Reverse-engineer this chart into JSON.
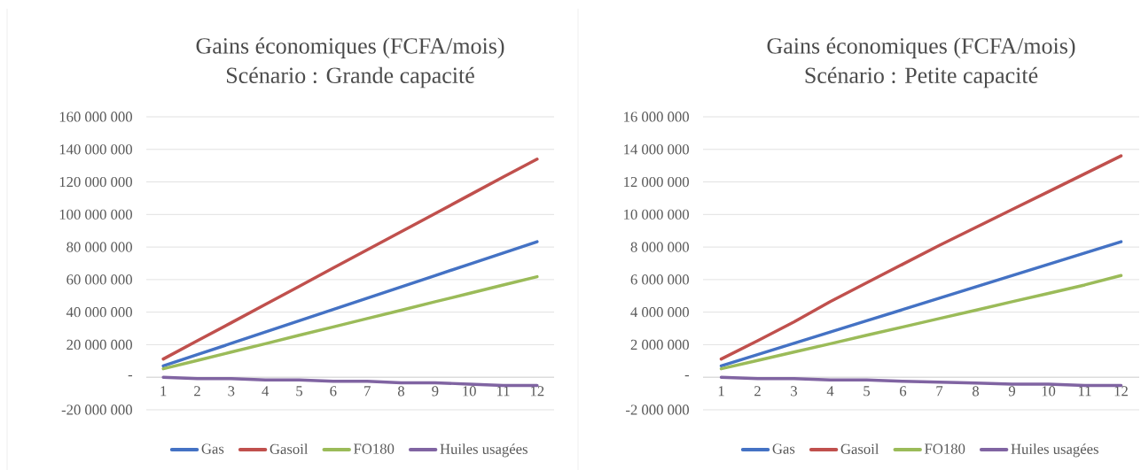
{
  "chart_data": [
    {
      "type": "line",
      "title": "Gains économiques (FCFA/mois)",
      "subtitle": "Scénario : Grande capacité",
      "categories": [
        "1",
        "2",
        "3",
        "4",
        "5",
        "6",
        "7",
        "8",
        "9",
        "10",
        "11",
        "12"
      ],
      "series": [
        {
          "name": "Gas",
          "color": "#4472c4",
          "values": [
            7000000,
            13900000,
            20800000,
            27800000,
            34700000,
            41600000,
            48600000,
            55500000,
            62500000,
            69400000,
            76300000,
            83300000
          ]
        },
        {
          "name": "Gasoil",
          "color": "#c0504d",
          "values": [
            11200000,
            22400000,
            33500000,
            44700000,
            55900000,
            67100000,
            78300000,
            89400000,
            100600000,
            111800000,
            123000000,
            134000000
          ]
        },
        {
          "name": "FO180",
          "color": "#9bbb59",
          "values": [
            5200000,
            10300000,
            15500000,
            20600000,
            25800000,
            30900000,
            36100000,
            41200000,
            46400000,
            51500000,
            56700000,
            61800000
          ]
        },
        {
          "name": "Huiles usagées",
          "color": "#8064a2",
          "values": [
            0,
            -800000,
            -800000,
            -1700000,
            -1700000,
            -2500000,
            -2500000,
            -3400000,
            -3400000,
            -4200000,
            -5000000,
            -5000000
          ]
        }
      ],
      "ylim": [
        -20000000,
        160000000
      ],
      "yticks": [
        {
          "value": -20000000,
          "label": "-20 000 000"
        },
        {
          "value": 0,
          "label": "-"
        },
        {
          "value": 20000000,
          "label": "20 000 000"
        },
        {
          "value": 40000000,
          "label": "40 000 000"
        },
        {
          "value": 60000000,
          "label": "60 000 000"
        },
        {
          "value": 80000000,
          "label": "80 000 000"
        },
        {
          "value": 100000000,
          "label": "100 000 000"
        },
        {
          "value": 120000000,
          "label": "120 000 000"
        },
        {
          "value": 140000000,
          "label": "140 000 000"
        },
        {
          "value": 160000000,
          "label": "160 000 000"
        }
      ],
      "grid": "y",
      "legend": "bottom",
      "marker": "none",
      "line_style": "solid"
    },
    {
      "type": "line",
      "title": "Gains économiques (FCFA/mois)",
      "subtitle": "Scénario : Petite capacité",
      "categories": [
        "1",
        "2",
        "3",
        "4",
        "5",
        "6",
        "7",
        "8",
        "9",
        "10",
        "11",
        "12"
      ],
      "series": [
        {
          "name": "Gas",
          "color": "#4472c4",
          "values": [
            700000,
            1390000,
            2080000,
            2780000,
            3470000,
            4160000,
            4860000,
            5550000,
            6250000,
            6940000,
            7630000,
            8330000
          ]
        },
        {
          "name": "Gasoil",
          "color": "#c0504d",
          "values": [
            1120000,
            2240000,
            3400000,
            4650000,
            5800000,
            6950000,
            8100000,
            9200000,
            10300000,
            11400000,
            12500000,
            13600000
          ]
        },
        {
          "name": "FO180",
          "color": "#9bbb59",
          "values": [
            520000,
            1030000,
            1550000,
            2060000,
            2580000,
            3090000,
            3610000,
            4120000,
            4640000,
            5150000,
            5670000,
            6250000
          ]
        },
        {
          "name": "Huiles usagées",
          "color": "#8064a2",
          "values": [
            0,
            -80000,
            -80000,
            -170000,
            -170000,
            -250000,
            -300000,
            -350000,
            -420000,
            -420000,
            -500000,
            -500000
          ]
        }
      ],
      "ylim": [
        -2000000,
        16000000
      ],
      "yticks": [
        {
          "value": -2000000,
          "label": "-2 000 000"
        },
        {
          "value": 0,
          "label": "-"
        },
        {
          "value": 2000000,
          "label": "2 000 000"
        },
        {
          "value": 4000000,
          "label": "4 000 000"
        },
        {
          "value": 6000000,
          "label": "6 000 000"
        },
        {
          "value": 8000000,
          "label": "8 000 000"
        },
        {
          "value": 10000000,
          "label": "10 000 000"
        },
        {
          "value": 12000000,
          "label": "12 000 000"
        },
        {
          "value": 14000000,
          "label": "14 000 000"
        },
        {
          "value": 16000000,
          "label": "16 000 000"
        }
      ],
      "grid": "y",
      "legend": "bottom",
      "marker": "none",
      "line_style": "solid"
    }
  ]
}
